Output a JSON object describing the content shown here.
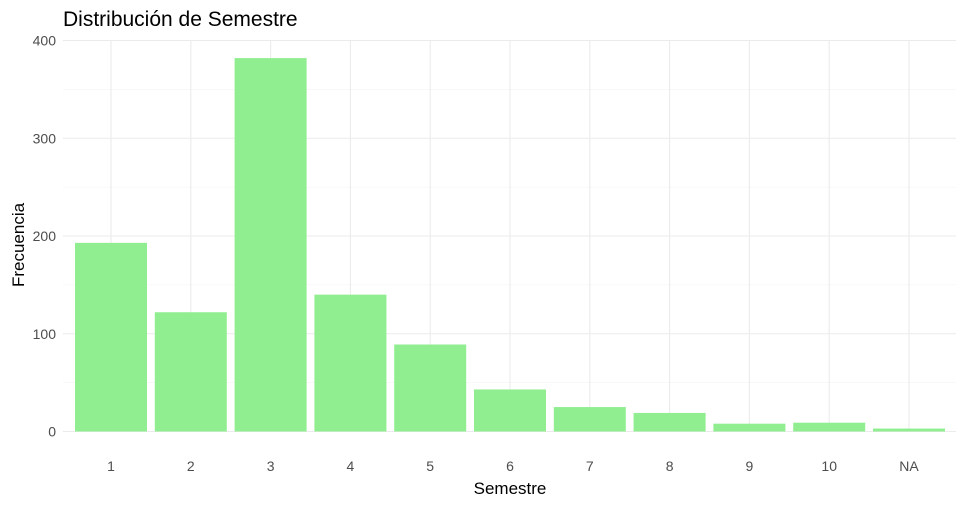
{
  "chart_data": {
    "type": "bar",
    "title": "Distribución de Semestre",
    "xlabel": "Semestre",
    "ylabel": "Frecuencia",
    "categories": [
      "1",
      "2",
      "3",
      "4",
      "5",
      "6",
      "7",
      "8",
      "9",
      "10",
      "NA"
    ],
    "values": [
      193,
      122,
      382,
      140,
      89,
      43,
      25,
      19,
      8,
      9,
      3
    ],
    "ylim": [
      0,
      400
    ],
    "yticks": [
      0,
      100,
      200,
      300,
      400
    ],
    "grid": true,
    "legend": "none",
    "bar_color": "#90EE90"
  }
}
